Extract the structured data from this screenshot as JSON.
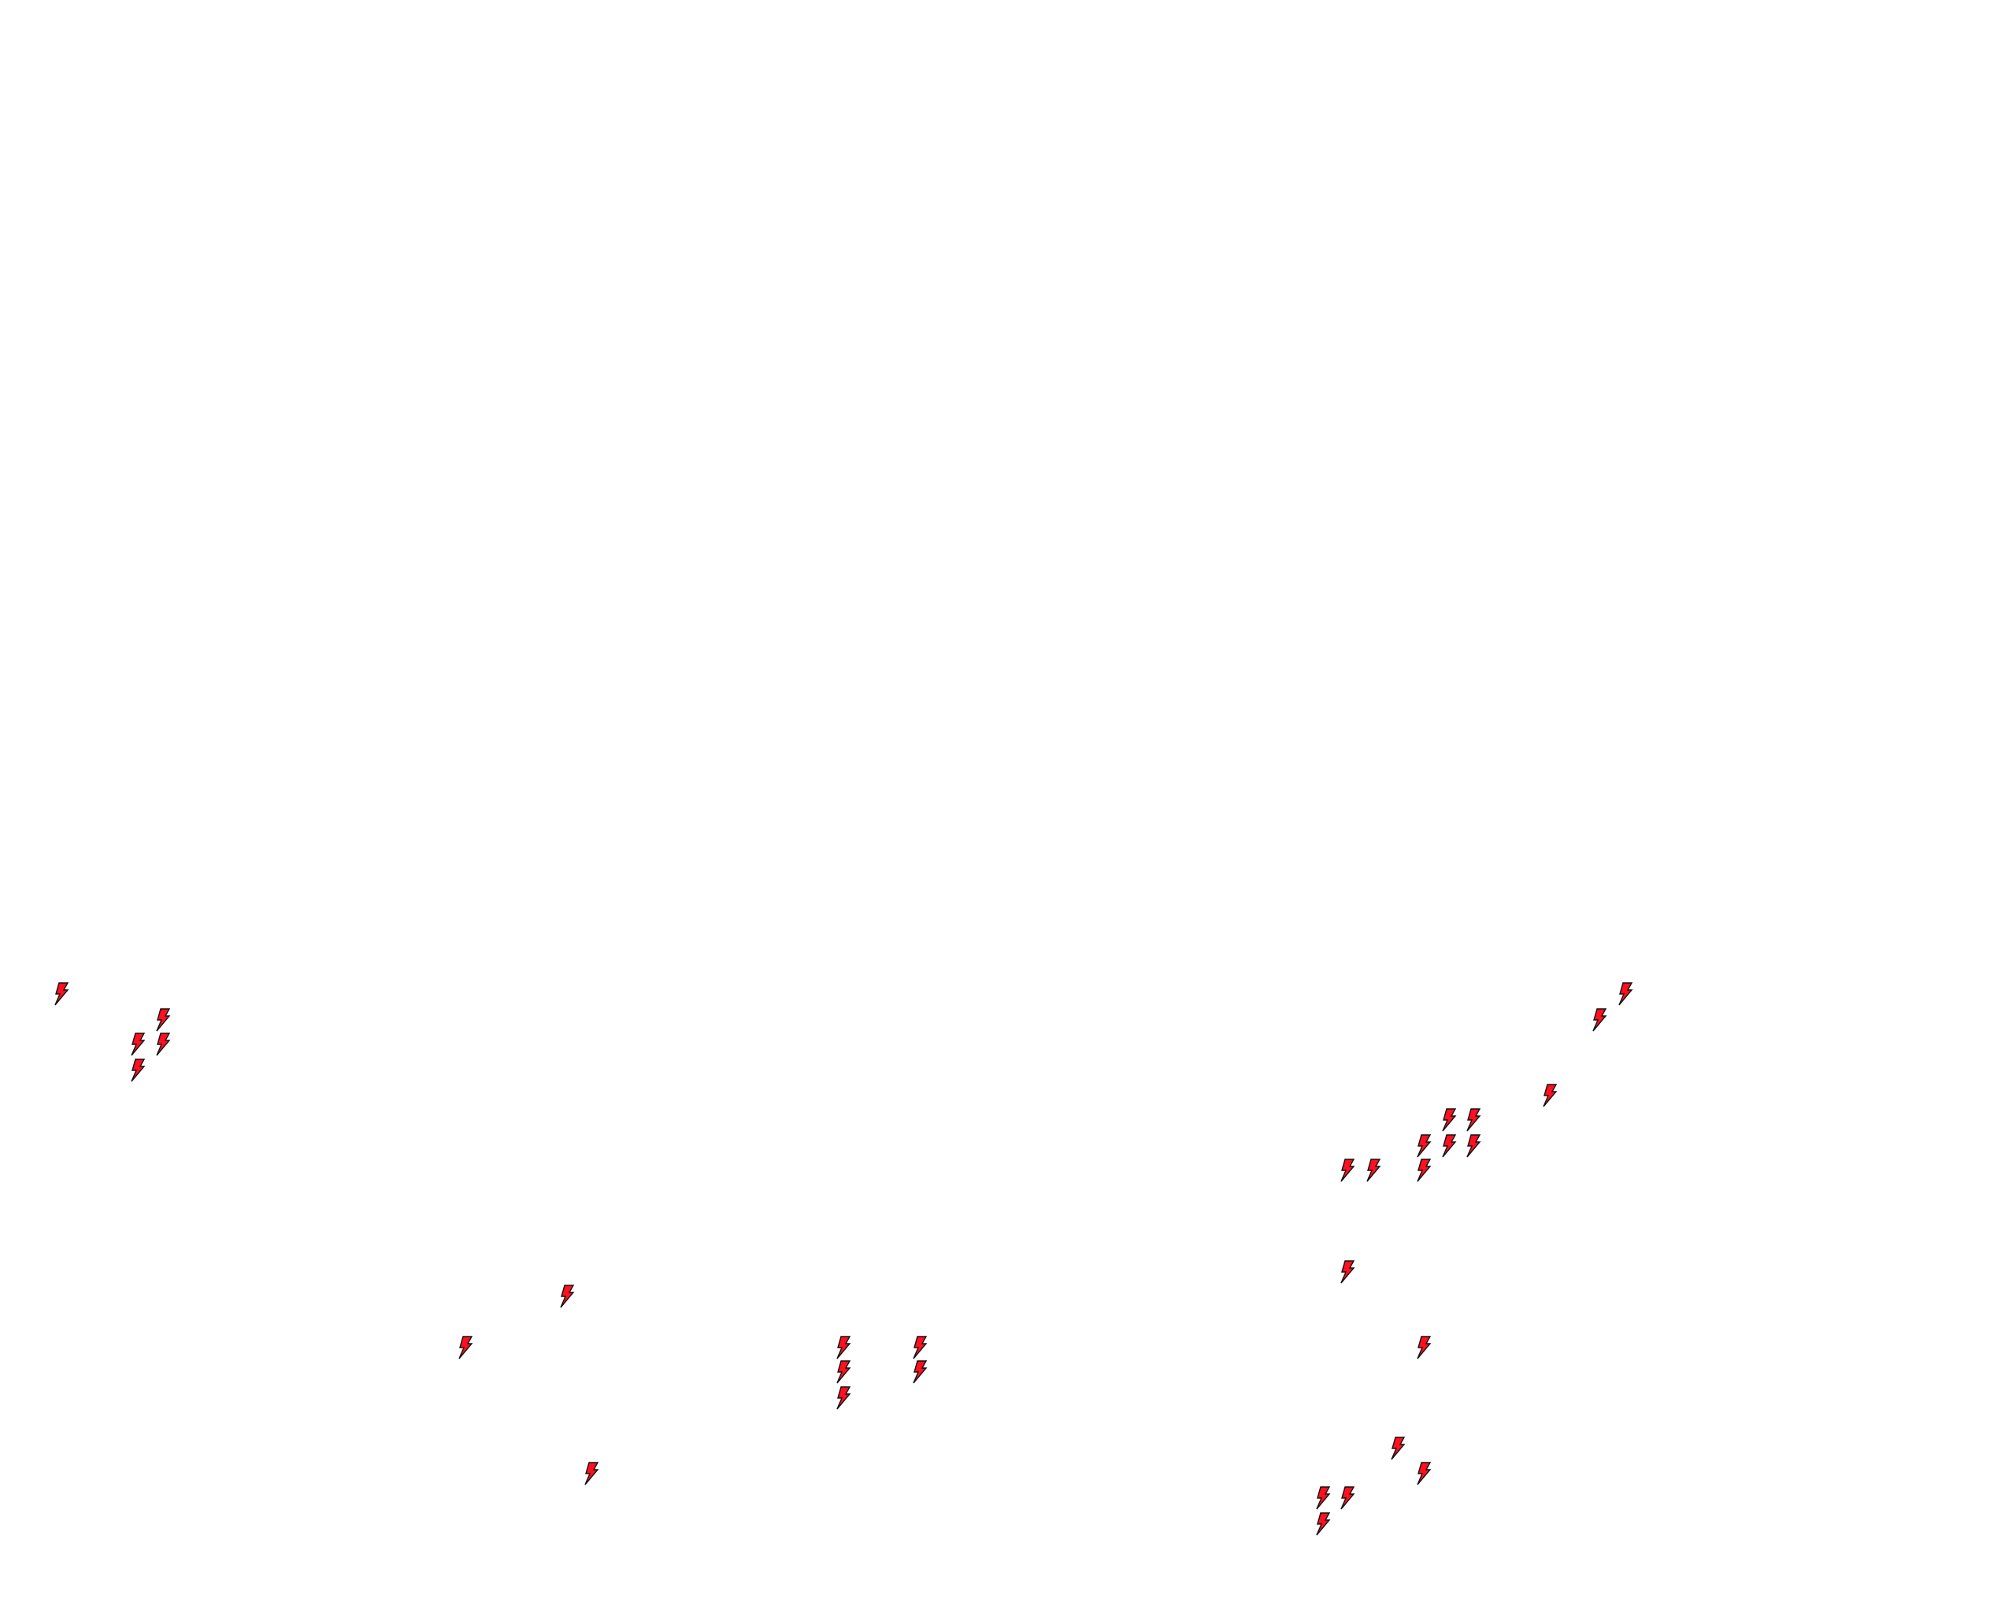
{
  "map": {
    "background_color": "#ffffff",
    "marker_icon": "lightning-icon",
    "marker_fill": "#ff0f1f",
    "marker_stroke": "#111111"
  }
}
